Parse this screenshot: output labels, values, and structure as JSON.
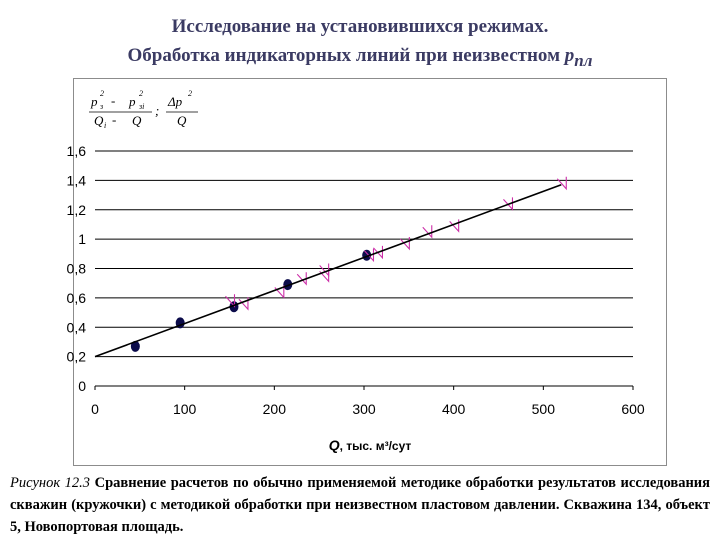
{
  "title_line1": "Исследование на установившихся режимах.",
  "title_line2_main": "Обработка индикаторных линий при неизвестном ",
  "title_line2_sym": "р",
  "title_line2_sub": "пл",
  "formula": {
    "num1": "p",
    "num1_sub": "з",
    "num1_sup": "2",
    "minus": "-",
    "num2": "p",
    "num2_sub": "зi",
    "num2_sup": "2",
    "den1": "Q",
    "den1_sub": "i",
    "den2": "Q",
    "sep": ";",
    "num3": "Δp",
    "num3_sup": "2",
    "den3": "Q"
  },
  "caption": {
    "fig_label": "Рисунок 12.3",
    "text": " Сравнение расчетов по обычно применяемой методике обработки результатов исследования скважин (кружочки) с методикой обработки при неизвестном пластовом давлении. Скважина 134, объект 5, Новопортовая площадь."
  },
  "chart_data": {
    "type": "scatter",
    "xlabel_italic": "Q",
    "xlabel": ", тыс. м³/сут",
    "xlim": [
      0,
      600
    ],
    "ylim": [
      0,
      1.6
    ],
    "xticks": [
      0,
      100,
      200,
      300,
      400,
      500,
      600
    ],
    "xtick_labels": [
      "0",
      "100",
      "200",
      "300",
      "400",
      "500",
      "600"
    ],
    "yticks": [
      0,
      0.2,
      0.4,
      0.6,
      0.8,
      1.0,
      1.2,
      1.4,
      1.6
    ],
    "ytick_labels": [
      "0",
      "0,2",
      "0,4",
      "0,6",
      "0,8",
      "1",
      "1,2",
      "1,4",
      "1,6"
    ],
    "grid": "horizontal",
    "series": [
      {
        "marker": "circle",
        "color": "#0b0b4a",
        "points": [
          [
            45,
            0.27
          ],
          [
            95,
            0.43
          ],
          [
            155,
            0.54
          ],
          [
            215,
            0.69
          ],
          [
            303,
            0.89
          ]
        ]
      },
      {
        "marker": "triangle-outline",
        "color": "#cc2fa8",
        "points": [
          [
            150,
            0.57
          ],
          [
            165,
            0.55
          ],
          [
            205,
            0.63
          ],
          [
            230,
            0.72
          ],
          [
            255,
            0.74
          ],
          [
            255,
            0.78
          ],
          [
            305,
            0.88
          ],
          [
            315,
            0.9
          ],
          [
            345,
            0.96
          ],
          [
            370,
            1.04
          ],
          [
            400,
            1.08
          ],
          [
            460,
            1.23
          ],
          [
            520,
            1.37
          ]
        ]
      },
      {
        "type": "line",
        "color": "#000000",
        "points": [
          [
            0,
            0.2
          ],
          [
            520,
            1.37
          ]
        ]
      }
    ]
  }
}
